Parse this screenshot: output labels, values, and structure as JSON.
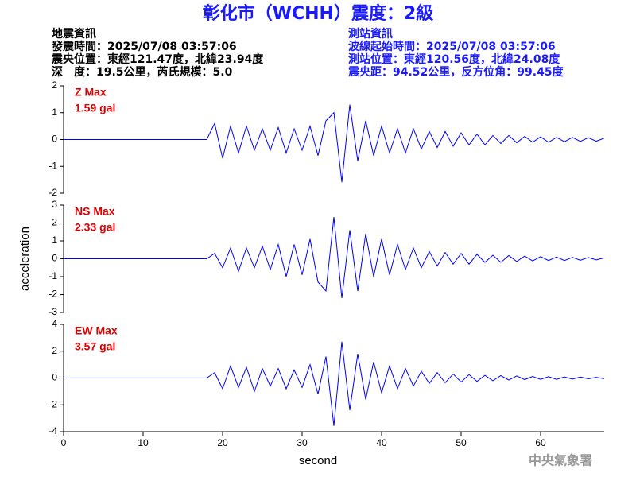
{
  "header": {
    "title": "彰化市（WCHH）震度：2級",
    "left": [
      "地震資訊",
      "發震時間：2025/07/08 03:57:06",
      "震央位置：東經121.47度，北緯23.94度",
      "深　度：19.5公里，芮氏規模：5.0"
    ],
    "right": [
      "測站資訊",
      "波線起始時間：2025/07/08 03:57:06",
      "測站位置：東經120.56度，北緯24.08度",
      "震央距：94.52公里，反方位角：99.45度"
    ]
  },
  "footer": "中央氣象署",
  "chart_data": [
    {
      "type": "line",
      "annotations": [
        "Z Max",
        "1.59 gal"
      ],
      "color": "#0000ff",
      "xlim": [
        0,
        68
      ],
      "ylim": [
        -2,
        2
      ],
      "yticks": [
        -2,
        -1,
        0,
        1,
        2
      ],
      "x": [
        0,
        18,
        19,
        20,
        21,
        22,
        23,
        24,
        25,
        26,
        27,
        28,
        29,
        30,
        31,
        32,
        33,
        34,
        35,
        36,
        37,
        38,
        39,
        40,
        41,
        42,
        43,
        44,
        45,
        46,
        47,
        48,
        49,
        50,
        51,
        52,
        53,
        54,
        55,
        56,
        57,
        58,
        59,
        60,
        61,
        62,
        63,
        64,
        65,
        66,
        67,
        68
      ],
      "values": [
        0,
        0,
        0.6,
        -0.7,
        0.5,
        -0.5,
        0.5,
        -0.4,
        0.4,
        -0.4,
        0.45,
        -0.5,
        0.4,
        -0.4,
        0.5,
        -0.6,
        0.7,
        1.0,
        -1.59,
        1.3,
        -0.8,
        0.7,
        -0.6,
        0.5,
        -0.5,
        0.4,
        -0.5,
        0.4,
        -0.35,
        0.3,
        -0.3,
        0.3,
        -0.25,
        0.25,
        -0.2,
        0.2,
        -0.2,
        0.15,
        -0.15,
        0.15,
        -0.12,
        0.12,
        -0.1,
        0.1,
        -0.1,
        0.08,
        -0.08,
        0.08,
        -0.07,
        0.07,
        -0.06,
        0.05
      ]
    },
    {
      "type": "line",
      "annotations": [
        "NS Max",
        "2.33 gal"
      ],
      "color": "#0000ff",
      "ylabel": "acceleration",
      "xlim": [
        0,
        68
      ],
      "ylim": [
        -3,
        3
      ],
      "yticks": [
        -3,
        -2,
        -1,
        0,
        1,
        2,
        3
      ],
      "x": [
        0,
        18,
        19,
        20,
        21,
        22,
        23,
        24,
        25,
        26,
        27,
        28,
        29,
        30,
        31,
        32,
        33,
        34,
        35,
        36,
        37,
        38,
        39,
        40,
        41,
        42,
        43,
        44,
        45,
        46,
        47,
        48,
        49,
        50,
        51,
        52,
        53,
        54,
        55,
        56,
        57,
        58,
        59,
        60,
        61,
        62,
        63,
        64,
        65,
        66,
        67,
        68
      ],
      "values": [
        0,
        0,
        0.3,
        -0.5,
        0.6,
        -0.7,
        0.6,
        -0.5,
        0.7,
        -0.6,
        0.8,
        -1.0,
        0.8,
        -0.9,
        1.1,
        -1.3,
        -1.8,
        2.33,
        -2.2,
        1.6,
        -1.8,
        1.4,
        -1.0,
        1.1,
        -0.9,
        0.8,
        -0.6,
        0.6,
        -0.5,
        0.4,
        -0.4,
        0.35,
        -0.3,
        0.3,
        -0.3,
        0.25,
        -0.2,
        0.2,
        -0.2,
        0.18,
        -0.15,
        0.15,
        -0.12,
        0.12,
        -0.1,
        0.1,
        -0.1,
        0.08,
        -0.08,
        0.07,
        -0.06,
        0.05
      ]
    },
    {
      "type": "line",
      "annotations": [
        "EW Max",
        "3.57 gal"
      ],
      "color": "#0000ff",
      "xlabel": "second",
      "xlim": [
        0,
        68
      ],
      "xticks": [
        0,
        10,
        20,
        30,
        40,
        50,
        60
      ],
      "ylim": [
        -4,
        4
      ],
      "yticks": [
        -4,
        -2,
        0,
        2,
        4
      ],
      "x": [
        0,
        18,
        19,
        20,
        21,
        22,
        23,
        24,
        25,
        26,
        27,
        28,
        29,
        30,
        31,
        32,
        33,
        34,
        35,
        36,
        37,
        38,
        39,
        40,
        41,
        42,
        43,
        44,
        45,
        46,
        47,
        48,
        49,
        50,
        51,
        52,
        53,
        54,
        55,
        56,
        57,
        58,
        59,
        60,
        61,
        62,
        63,
        64,
        65,
        66,
        67,
        68
      ],
      "values": [
        0,
        0,
        0.4,
        -0.8,
        0.9,
        -0.7,
        0.8,
        -1.0,
        0.7,
        -0.6,
        0.7,
        -0.8,
        0.6,
        -0.7,
        1.0,
        -1.2,
        1.6,
        -3.57,
        2.7,
        -2.4,
        1.8,
        -1.6,
        1.2,
        -1.1,
        0.9,
        -0.8,
        0.7,
        -0.6,
        0.5,
        -0.4,
        0.4,
        -0.35,
        0.3,
        -0.3,
        0.25,
        -0.25,
        0.2,
        -0.2,
        0.18,
        -0.15,
        0.15,
        -0.12,
        0.12,
        -0.1,
        0.1,
        -0.1,
        0.08,
        -0.08,
        0.07,
        -0.06,
        0.05,
        -0.05
      ]
    }
  ]
}
